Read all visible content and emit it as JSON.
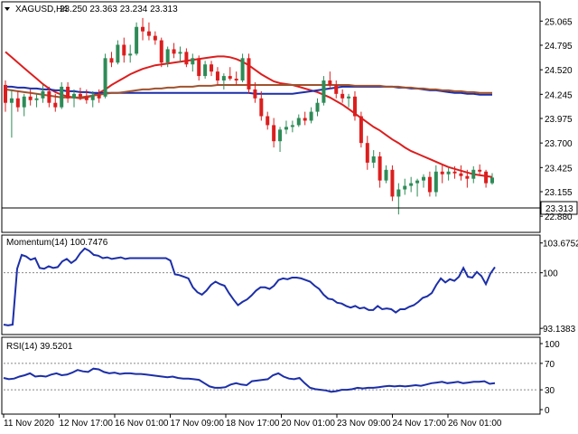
{
  "header": {
    "symbol": "XAGUSD,H4",
    "ohlc": "23.250 23.363 23.234 23.313"
  },
  "price_tag": "23.313",
  "colors": {
    "bull": "#2e8b57",
    "bear": "#dc1e1e",
    "ma_red": "#dc1e1e",
    "ma_blue": "#1c2fa8",
    "ma_brown": "#a0522d",
    "indicator": "#1c2fa8",
    "grid_dotted": "#888888"
  },
  "chart_data": [
    {
      "type": "candlestick",
      "title": "XAGUSD,H4",
      "ylim": [
        22.75,
        25.2
      ],
      "y_ticks": [
        "25.065",
        "24.795",
        "24.520",
        "24.245",
        "23.975",
        "23.700",
        "23.425",
        "23.155",
        "22.880"
      ],
      "x_ticks": [
        "11 Nov 2020",
        "12 Nov 17:00",
        "16 Nov 01:00",
        "17 Nov 09:00",
        "18 Nov 17:00",
        "20 Nov 01:00",
        "23 Nov 09:00",
        "24 Nov 17:00",
        "26 Nov 01:00"
      ],
      "last_price": 23.313,
      "candles": [
        [
          24.35,
          24.4,
          24.05,
          24.15
        ],
        [
          24.15,
          24.3,
          23.76,
          24.2
        ],
        [
          24.2,
          24.28,
          24.05,
          24.1
        ],
        [
          24.1,
          24.25,
          24.0,
          24.22
        ],
        [
          24.22,
          24.3,
          24.12,
          24.18
        ],
        [
          24.18,
          24.25,
          24.1,
          24.2
        ],
        [
          24.2,
          24.35,
          24.15,
          24.28
        ],
        [
          24.28,
          24.33,
          24.1,
          24.15
        ],
        [
          24.15,
          24.25,
          24.05,
          24.1
        ],
        [
          24.1,
          24.38,
          24.08,
          24.33
        ],
        [
          24.33,
          24.38,
          24.15,
          24.2
        ],
        [
          24.2,
          24.3,
          24.1,
          24.25
        ],
        [
          24.25,
          24.32,
          24.18,
          24.22
        ],
        [
          24.22,
          24.3,
          24.14,
          24.18
        ],
        [
          24.18,
          24.28,
          24.1,
          24.24
        ],
        [
          24.24,
          24.3,
          24.15,
          24.2
        ],
        [
          24.22,
          24.7,
          24.2,
          24.65
        ],
        [
          24.65,
          24.72,
          24.55,
          24.6
        ],
        [
          24.6,
          24.85,
          24.58,
          24.8
        ],
        [
          24.8,
          24.88,
          24.6,
          24.68
        ],
        [
          24.68,
          24.8,
          24.6,
          24.7
        ],
        [
          24.7,
          25.05,
          24.68,
          25.0
        ],
        [
          25.0,
          25.1,
          24.85,
          24.95
        ],
        [
          24.95,
          25.05,
          24.85,
          24.9
        ],
        [
          24.9,
          24.95,
          24.8,
          24.85
        ],
        [
          24.85,
          24.88,
          24.55,
          24.6
        ],
        [
          24.6,
          24.78,
          24.55,
          24.75
        ],
        [
          24.75,
          24.82,
          24.65,
          24.7
        ],
        [
          24.7,
          24.78,
          24.6,
          24.72
        ],
        [
          24.72,
          24.76,
          24.55,
          24.58
        ],
        [
          24.58,
          24.7,
          24.5,
          24.65
        ],
        [
          24.65,
          24.68,
          24.4,
          24.45
        ],
        [
          24.45,
          24.62,
          24.42,
          24.58
        ],
        [
          24.58,
          24.62,
          24.45,
          24.5
        ],
        [
          24.5,
          24.55,
          24.35,
          24.4
        ],
        [
          24.4,
          24.48,
          24.3,
          24.45
        ],
        [
          24.45,
          24.55,
          24.4,
          24.42
        ],
        [
          24.42,
          24.5,
          24.35,
          24.4
        ],
        [
          24.4,
          24.7,
          24.38,
          24.65
        ],
        [
          24.65,
          24.7,
          24.25,
          24.3
        ],
        [
          24.3,
          24.38,
          24.15,
          24.2
        ],
        [
          24.2,
          24.28,
          23.95,
          24.0
        ],
        [
          24.0,
          24.05,
          23.85,
          23.9
        ],
        [
          23.9,
          23.98,
          23.65,
          23.72
        ],
        [
          23.72,
          23.88,
          23.6,
          23.85
        ],
        [
          23.85,
          23.95,
          23.8,
          23.88
        ],
        [
          23.88,
          23.95,
          23.82,
          23.9
        ],
        [
          23.9,
          24.02,
          23.88,
          23.98
        ],
        [
          23.98,
          24.05,
          23.9,
          23.95
        ],
        [
          23.95,
          24.1,
          23.92,
          24.05
        ],
        [
          24.05,
          24.2,
          24.0,
          24.15
        ],
        [
          24.15,
          24.45,
          24.12,
          24.4
        ],
        [
          24.4,
          24.5,
          24.3,
          24.35
        ],
        [
          24.35,
          24.4,
          24.2,
          24.25
        ],
        [
          24.25,
          24.3,
          24.15,
          24.2
        ],
        [
          24.2,
          24.25,
          24.1,
          24.22
        ],
        [
          24.22,
          24.28,
          23.95,
          24.0
        ],
        [
          24.0,
          24.05,
          23.65,
          23.7
        ],
        [
          23.7,
          23.78,
          23.4,
          23.48
        ],
        [
          23.48,
          23.62,
          23.42,
          23.55
        ],
        [
          23.55,
          23.6,
          23.2,
          23.28
        ],
        [
          23.28,
          23.45,
          23.25,
          23.4
        ],
        [
          23.4,
          23.45,
          23.05,
          23.1
        ],
        [
          23.1,
          23.25,
          22.9,
          23.18
        ],
        [
          23.18,
          23.3,
          23.12,
          23.22
        ],
        [
          23.22,
          23.32,
          23.15,
          23.25
        ],
        [
          23.25,
          23.3,
          23.1,
          23.28
        ],
        [
          23.28,
          23.35,
          23.2,
          23.32
        ],
        [
          23.32,
          23.38,
          23.1,
          23.15
        ],
        [
          23.15,
          23.45,
          23.1,
          23.38
        ],
        [
          23.38,
          23.45,
          23.25,
          23.35
        ],
        [
          23.35,
          23.42,
          23.28,
          23.38
        ],
        [
          23.38,
          23.44,
          23.3,
          23.36
        ],
        [
          23.36,
          23.45,
          23.28,
          23.33
        ],
        [
          23.33,
          23.4,
          23.2,
          23.3
        ],
        [
          23.3,
          23.44,
          23.25,
          23.4
        ],
        [
          23.4,
          23.46,
          23.35,
          23.38
        ],
        [
          23.38,
          23.4,
          23.2,
          23.25
        ],
        [
          23.25,
          23.363,
          23.234,
          23.313
        ]
      ],
      "series": [
        {
          "kind": "ma",
          "color_key": "ma_red",
          "values": [
            24.72,
            24.66,
            24.6,
            24.54,
            24.48,
            24.42,
            24.36,
            24.31,
            24.27,
            24.24,
            24.22,
            24.21,
            24.2,
            24.21,
            24.23,
            24.26,
            24.3,
            24.35,
            24.39,
            24.43,
            24.47,
            24.5,
            24.53,
            24.55,
            24.57,
            24.58,
            24.59,
            24.6,
            24.61,
            24.62,
            24.63,
            24.64,
            24.65,
            24.66,
            24.67,
            24.67,
            24.66,
            24.64,
            24.61,
            24.57,
            24.52,
            24.47,
            24.43,
            24.39,
            24.37,
            24.36,
            24.35,
            24.33,
            24.31,
            24.29,
            24.27,
            24.24,
            24.21,
            24.17,
            24.13,
            24.08,
            24.03,
            23.98,
            23.93,
            23.88,
            23.84,
            23.79,
            23.74,
            23.7,
            23.65,
            23.61,
            23.58,
            23.55,
            23.52,
            23.49,
            23.46,
            23.43,
            23.41,
            23.39,
            23.37,
            23.35,
            23.34,
            23.33,
            23.32
          ]
        },
        {
          "kind": "ma",
          "color_key": "ma_blue",
          "values": [
            24.33,
            24.33,
            24.32,
            24.32,
            24.31,
            24.31,
            24.3,
            24.3,
            24.29,
            24.29,
            24.28,
            24.28,
            24.27,
            24.27,
            24.26,
            24.26,
            24.26,
            24.26,
            24.26,
            24.26,
            24.26,
            24.26,
            24.26,
            24.26,
            24.26,
            24.26,
            24.26,
            24.26,
            24.26,
            24.26,
            24.26,
            24.26,
            24.26,
            24.26,
            24.26,
            24.26,
            24.26,
            24.26,
            24.26,
            24.26,
            24.25,
            24.25,
            24.25,
            24.25,
            24.25,
            24.25,
            24.25,
            24.26,
            24.27,
            24.28,
            24.29,
            24.3,
            24.31,
            24.32,
            24.33,
            24.33,
            24.33,
            24.33,
            24.33,
            24.33,
            24.33,
            24.33,
            24.33,
            24.32,
            24.32,
            24.31,
            24.31,
            24.3,
            24.29,
            24.29,
            24.28,
            24.27,
            24.26,
            24.26,
            24.25,
            24.25,
            24.24,
            24.24,
            24.24
          ]
        },
        {
          "kind": "ma",
          "color_key": "ma_brown",
          "values": [
            24.3,
            24.29,
            24.28,
            24.27,
            24.26,
            24.25,
            24.24,
            24.23,
            24.22,
            24.21,
            24.21,
            24.21,
            24.21,
            24.22,
            24.23,
            24.24,
            24.25,
            24.26,
            24.26,
            24.27,
            24.28,
            24.29,
            24.3,
            24.3,
            24.31,
            24.31,
            24.32,
            24.32,
            24.33,
            24.33,
            24.33,
            24.34,
            24.34,
            24.34,
            24.35,
            24.35,
            24.35,
            24.35,
            24.35,
            24.35,
            24.35,
            24.35,
            24.35,
            24.35,
            24.35,
            24.35,
            24.35,
            24.35,
            24.35,
            24.35,
            24.35,
            24.35,
            24.35,
            24.35,
            24.35,
            24.35,
            24.34,
            24.34,
            24.34,
            24.34,
            24.34,
            24.33,
            24.33,
            24.33,
            24.32,
            24.32,
            24.31,
            24.31,
            24.3,
            24.3,
            24.29,
            24.29,
            24.28,
            24.28,
            24.27,
            24.27,
            24.26,
            24.26,
            24.26
          ]
        }
      ]
    },
    {
      "type": "line",
      "title": "Momentum(14) 100.7476",
      "ylim": [
        92.6,
        104.2
      ],
      "y_ticks": [
        "103.6752",
        "100",
        "93.1383"
      ],
      "reference_level": 100,
      "series": [
        {
          "color_key": "indicator",
          "values": [
            93.6,
            93.5,
            93.6,
            100.5,
            102.2,
            102.0,
            101.6,
            101.8,
            100.6,
            100.5,
            100.8,
            100.6,
            100.7,
            101.4,
            101.7,
            101.2,
            101.6,
            102.4,
            103.0,
            102.7,
            102.2,
            102.1,
            101.8,
            101.9,
            101.7,
            101.8,
            101.9,
            101.7,
            101.8,
            101.8,
            101.8,
            101.8,
            101.8,
            101.8,
            101.8,
            101.8,
            101.8,
            101.5,
            99.8,
            99.7,
            99.5,
            99.3,
            98.2,
            97.6,
            97.3,
            97.8,
            98.5,
            98.9,
            98.6,
            98.4,
            97.5,
            96.7,
            96.0,
            96.4,
            96.7,
            97.2,
            97.8,
            98.2,
            98.2,
            98.0,
            98.4,
            99.1,
            99.3,
            99.2,
            99.4,
            99.4,
            99.3,
            99.1,
            98.9,
            98.4,
            98.0,
            97.3,
            96.8,
            96.7,
            96.3,
            96.2,
            95.9,
            95.7,
            95.9,
            95.6,
            95.7,
            95.4,
            95.4,
            95.9,
            95.5,
            95.6,
            95.5,
            95.1,
            95.5,
            95.5,
            95.8,
            96.0,
            96.4,
            96.9,
            97.1,
            97.5,
            98.5,
            99.3,
            98.8,
            99.2,
            99.0,
            99.5,
            100.6,
            99.5,
            99.4,
            100.1,
            99.6,
            98.6,
            99.9,
            100.7
          ]
        }
      ]
    },
    {
      "type": "line",
      "title": "RSI(14) 39.5201",
      "ylim": [
        0,
        100
      ],
      "y_ticks": [
        "100",
        "70",
        "30",
        "0"
      ],
      "levels": [
        70,
        30
      ],
      "series": [
        {
          "color_key": "indicator",
          "values": [
            48,
            46,
            47,
            50,
            52,
            55,
            50,
            51,
            50,
            53,
            55,
            52,
            53,
            56,
            60,
            58,
            57,
            62,
            61,
            57,
            55,
            56,
            54,
            55,
            55,
            54,
            54,
            53,
            52,
            51,
            50,
            49,
            50,
            48,
            47,
            47,
            46,
            45,
            40,
            35,
            33,
            33,
            34,
            38,
            40,
            38,
            37,
            43,
            44,
            45,
            46,
            52,
            55,
            50,
            47,
            46,
            48,
            40,
            33,
            31,
            30,
            29,
            27,
            28,
            30,
            30,
            31,
            33,
            32,
            33,
            33,
            34,
            35,
            36,
            35,
            36,
            35,
            36,
            37,
            36,
            38,
            40,
            41,
            42,
            40,
            41,
            42,
            40,
            41,
            42,
            42,
            43,
            39,
            40
          ]
        }
      ]
    }
  ]
}
